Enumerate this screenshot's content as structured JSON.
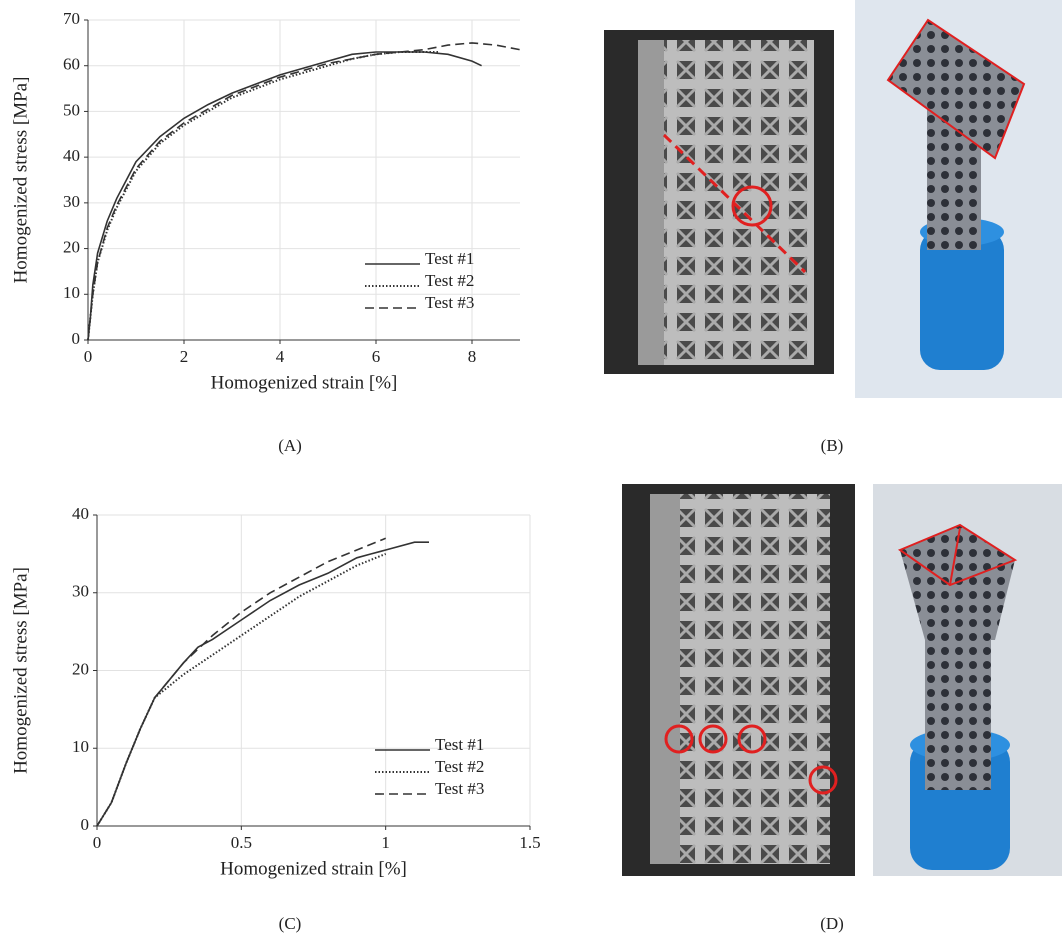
{
  "chart_data": [
    {
      "type": "line",
      "xlabel": "Homogenized strain [%]",
      "ylabel": "Homogenized stress [MPa]",
      "xlim": [
        0,
        9
      ],
      "ylim": [
        0,
        70
      ],
      "xticks": [
        0,
        2,
        4,
        6,
        8
      ],
      "yticks": [
        0,
        10,
        20,
        30,
        40,
        50,
        60,
        70
      ],
      "grid": true,
      "legend": "lower right",
      "series": [
        {
          "name": "Test #1",
          "color": "#333333",
          "dash": "solid",
          "x": [
            0,
            0.05,
            0.1,
            0.2,
            0.4,
            0.6,
            0.8,
            1,
            1.5,
            2,
            2.5,
            3,
            3.5,
            4,
            4.5,
            5,
            5.5,
            6,
            6.5,
            7,
            7.5,
            8,
            8.2
          ],
          "values": [
            0,
            5,
            12,
            19,
            26,
            31,
            35,
            39,
            44.5,
            48.5,
            51.5,
            54,
            56,
            58,
            59.5,
            61,
            62.5,
            63,
            63,
            63,
            62.5,
            61,
            60
          ]
        },
        {
          "name": "Test #2",
          "color": "#333333",
          "dash": "dotted",
          "x": [
            0,
            0.1,
            0.2,
            0.4,
            0.6,
            0.8,
            1,
            1.5,
            2,
            2.5,
            3,
            3.5,
            4,
            4.5,
            5,
            5.5,
            6,
            6.5,
            7,
            7.3
          ],
          "values": [
            0,
            10,
            17,
            24,
            29,
            33,
            37,
            43,
            47,
            50,
            53,
            55,
            57,
            58.5,
            60,
            61.5,
            62.5,
            63,
            63,
            63
          ]
        },
        {
          "name": "Test #3",
          "color": "#333333",
          "dash": "dashed",
          "x": [
            0,
            0.1,
            0.2,
            0.4,
            0.6,
            0.8,
            1,
            1.5,
            2,
            2.5,
            3,
            3.5,
            4,
            4.5,
            5,
            5.5,
            6,
            6.5,
            7,
            7.5,
            8,
            8.5,
            9
          ],
          "values": [
            0,
            10,
            17,
            24.5,
            29.5,
            33.5,
            37.5,
            43.5,
            47.5,
            50.5,
            53.5,
            55.5,
            57.5,
            59,
            60.5,
            61.5,
            62.5,
            63,
            63.5,
            64.5,
            65,
            64.5,
            63.5
          ]
        }
      ]
    },
    {
      "type": "line",
      "xlabel": "Homogenized strain [%]",
      "ylabel": "Homogenized stress [MPa]",
      "xlim": [
        0,
        1.5
      ],
      "ylim": [
        0,
        40
      ],
      "xticks": [
        0,
        0.5,
        1,
        1.5
      ],
      "yticks": [
        0,
        10,
        20,
        30,
        40
      ],
      "grid": true,
      "legend": "lower right",
      "series": [
        {
          "name": "Test #1",
          "color": "#333333",
          "dash": "solid",
          "x": [
            0,
            0.05,
            0.1,
            0.15,
            0.2,
            0.3,
            0.35,
            0.4,
            0.5,
            0.6,
            0.7,
            0.8,
            0.9,
            0.95,
            1,
            1.1,
            1.15
          ],
          "values": [
            0,
            3,
            8,
            12.5,
            16.5,
            21,
            23,
            24,
            26.5,
            29,
            31,
            32.5,
            34.5,
            35,
            35.5,
            36.5,
            36.5
          ]
        },
        {
          "name": "Test #2",
          "color": "#333333",
          "dash": "dotted",
          "x": [
            0,
            0.05,
            0.1,
            0.15,
            0.2,
            0.3,
            0.4,
            0.5,
            0.6,
            0.7,
            0.8,
            0.9,
            1
          ],
          "values": [
            0,
            3,
            8,
            12.5,
            16.5,
            19.5,
            22,
            24.5,
            27,
            29.5,
            31.5,
            33.5,
            35
          ]
        },
        {
          "name": "Test #3",
          "color": "#333333",
          "dash": "dashed",
          "x": [
            0,
            0.05,
            0.1,
            0.15,
            0.2,
            0.3,
            0.4,
            0.5,
            0.6,
            0.7,
            0.8,
            0.9,
            1
          ],
          "values": [
            0,
            3,
            8,
            12.5,
            16.5,
            21,
            24.5,
            27.5,
            30,
            32,
            34,
            35.5,
            37
          ]
        }
      ]
    }
  ],
  "panel_labels": [
    "(A)",
    "(B)",
    "(C)",
    "(D)"
  ]
}
